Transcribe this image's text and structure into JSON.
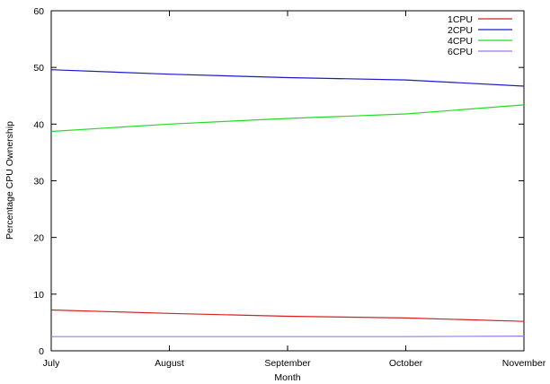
{
  "chart_data": {
    "type": "line",
    "title": "",
    "xlabel": "Month",
    "ylabel": "Percentage CPU Ownership",
    "categories": [
      "July",
      "August",
      "September",
      "October",
      "November"
    ],
    "ylim": [
      0,
      60
    ],
    "yticks": [
      "0",
      "10",
      "20",
      "30",
      "40",
      "50",
      "60"
    ],
    "grid": false,
    "legend_position": "top-right",
    "series": [
      {
        "name": "1CPU",
        "color": "#d62020",
        "values": [
          7.2,
          6.6,
          6.1,
          5.8,
          5.2
        ]
      },
      {
        "name": "2CPU",
        "color": "#1a1acc",
        "values": [
          49.6,
          48.8,
          48.2,
          47.8,
          46.7
        ]
      },
      {
        "name": "4CPU",
        "color": "#22dd22",
        "values": [
          38.7,
          40.0,
          41.0,
          41.8,
          43.4
        ]
      },
      {
        "name": "6CPU",
        "color": "#9b7be0",
        "values": [
          2.5,
          2.5,
          2.5,
          2.5,
          2.6
        ]
      }
    ]
  }
}
